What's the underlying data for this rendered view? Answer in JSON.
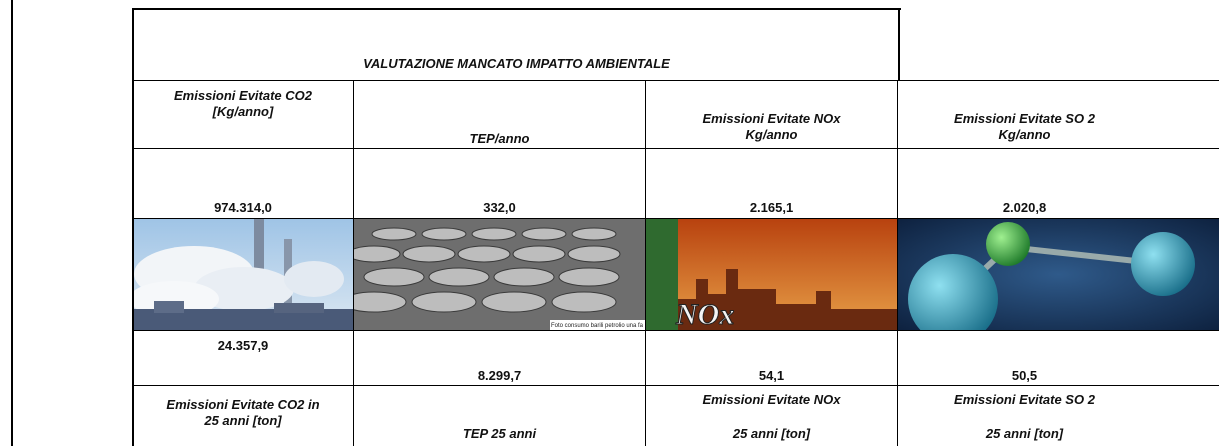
{
  "title": "VALUTAZIONE MANCATO IMPATTO AMBIENTALE",
  "table": {
    "header": [
      [
        "Emissioni Evitate CO2",
        "[Kg/anno]"
      ],
      [
        "TEP/anno"
      ],
      [
        "Emissioni Evitate NOx",
        "Kg/anno"
      ],
      [
        "Emissioni Evitate SO 2",
        "Kg/anno"
      ]
    ],
    "values": [
      "974.314,0",
      "332,0",
      "2.165,1",
      "2.020,8"
    ],
    "images": [
      null,
      {
        "caption": "Foto consumo barili petrolio una fa"
      },
      {
        "caption": "NOx"
      },
      null
    ],
    "values_25": [
      "24.357,9",
      "8.299,7",
      "54,1",
      "50,5"
    ],
    "footer": [
      [
        "Emissioni Evitate CO2 in",
        "25 anni [ton]"
      ],
      [
        "TEP 25 anni"
      ],
      [
        "Emissioni Evitate NOx",
        "25 anni [ton]"
      ],
      [
        "Emissioni Evitate SO 2",
        "25 anni [ton]"
      ]
    ]
  }
}
